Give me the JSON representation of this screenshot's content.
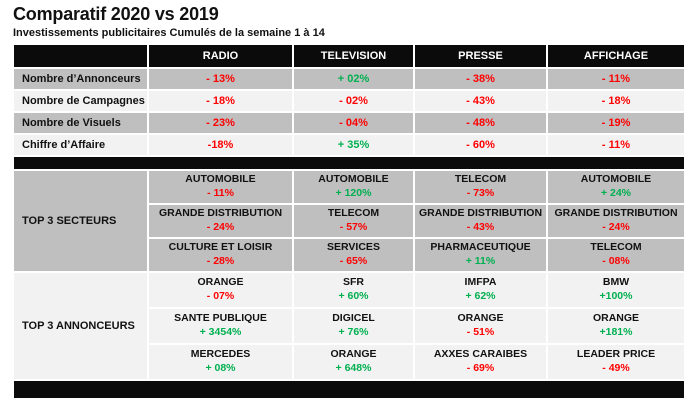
{
  "page": {
    "title": "Comparatif 2020 vs 2019",
    "subtitle": "Investissements publicitaires Cumulés de la semaine 1 à 14"
  },
  "colors": {
    "positive": "#00b050",
    "negative": "#ff0000",
    "header_bg": "#0b0b0b",
    "row_gray": "#bfbfbf",
    "row_light": "#f2f2f2"
  },
  "table": {
    "columns": [
      "RADIO",
      "TELEVISION",
      "PRESSE",
      "AFFICHAGE"
    ],
    "metrics": [
      {
        "label": "Nombre d’Annonceurs",
        "values": [
          {
            "text": "- 13%",
            "trend": "negative"
          },
          {
            "text": "+ 02%",
            "trend": "positive"
          },
          {
            "text": "- 38%",
            "trend": "negative"
          },
          {
            "text": "- 11%",
            "trend": "negative"
          }
        ]
      },
      {
        "label": "Nombre de Campagnes",
        "values": [
          {
            "text": "- 18%",
            "trend": "negative"
          },
          {
            "text": "- 02%",
            "trend": "negative"
          },
          {
            "text": "- 43%",
            "trend": "negative"
          },
          {
            "text": "- 18%",
            "trend": "negative"
          }
        ]
      },
      {
        "label": "Nombre de Visuels",
        "values": [
          {
            "text": "- 23%",
            "trend": "negative"
          },
          {
            "text": "- 04%",
            "trend": "negative"
          },
          {
            "text": "- 48%",
            "trend": "negative"
          },
          {
            "text": "- 19%",
            "trend": "negative"
          }
        ]
      },
      {
        "label": "Chiffre d’Affaire",
        "values": [
          {
            "text": "-18%",
            "trend": "negative"
          },
          {
            "text": "+ 35%",
            "trend": "positive"
          },
          {
            "text": "- 60%",
            "trend": "negative"
          },
          {
            "text": "- 11%",
            "trend": "negative"
          }
        ]
      }
    ],
    "top_secteurs": {
      "label": "TOP 3 SECTEURS",
      "rows": [
        [
          {
            "name": "AUTOMOBILE",
            "value": "- 11%",
            "trend": "negative"
          },
          {
            "name": "AUTOMOBILE",
            "value": "+ 120%",
            "trend": "positive"
          },
          {
            "name": "TELECOM",
            "value": "- 73%",
            "trend": "negative"
          },
          {
            "name": "AUTOMOBILE",
            "value": "+ 24%",
            "trend": "positive"
          }
        ],
        [
          {
            "name": "GRANDE DISTRIBUTION",
            "value": "- 24%",
            "trend": "negative"
          },
          {
            "name": "TELECOM",
            "value": "- 57%",
            "trend": "negative"
          },
          {
            "name": "GRANDE DISTRIBUTION",
            "value": "- 43%",
            "trend": "negative"
          },
          {
            "name": "GRANDE DISTRIBUTION",
            "value": "- 24%",
            "trend": "negative"
          }
        ],
        [
          {
            "name": "CULTURE ET LOISIR",
            "value": "- 28%",
            "trend": "negative"
          },
          {
            "name": "SERVICES",
            "value": "- 65%",
            "trend": "negative"
          },
          {
            "name": "PHARMACEUTIQUE",
            "value": "+ 11%",
            "trend": "positive"
          },
          {
            "name": "TELECOM",
            "value": "- 08%",
            "trend": "negative"
          }
        ]
      ]
    },
    "top_annonceurs": {
      "label": "TOP 3 ANNONCEURS",
      "rows": [
        [
          {
            "name": "ORANGE",
            "value": "- 07%",
            "trend": "negative"
          },
          {
            "name": "SFR",
            "value": "+ 60%",
            "trend": "positive"
          },
          {
            "name": "IMFPA",
            "value": "+ 62%",
            "trend": "positive"
          },
          {
            "name": "BMW",
            "value": "+100%",
            "trend": "positive"
          }
        ],
        [
          {
            "name": "SANTE PUBLIQUE",
            "value": "+ 3454%",
            "trend": "positive"
          },
          {
            "name": "DIGICEL",
            "value": "+ 76%",
            "trend": "positive"
          },
          {
            "name": "ORANGE",
            "value": "- 51%",
            "trend": "negative"
          },
          {
            "name": "ORANGE",
            "value": "+181%",
            "trend": "positive"
          }
        ],
        [
          {
            "name": "MERCEDES",
            "value": "+ 08%",
            "trend": "positive"
          },
          {
            "name": "ORANGE",
            "value": "+ 648%",
            "trend": "positive"
          },
          {
            "name": "AXXES CARAIBES",
            "value": "- 69%",
            "trend": "negative"
          },
          {
            "name": "LEADER PRICE",
            "value": "- 49%",
            "trend": "negative"
          }
        ]
      ]
    }
  }
}
